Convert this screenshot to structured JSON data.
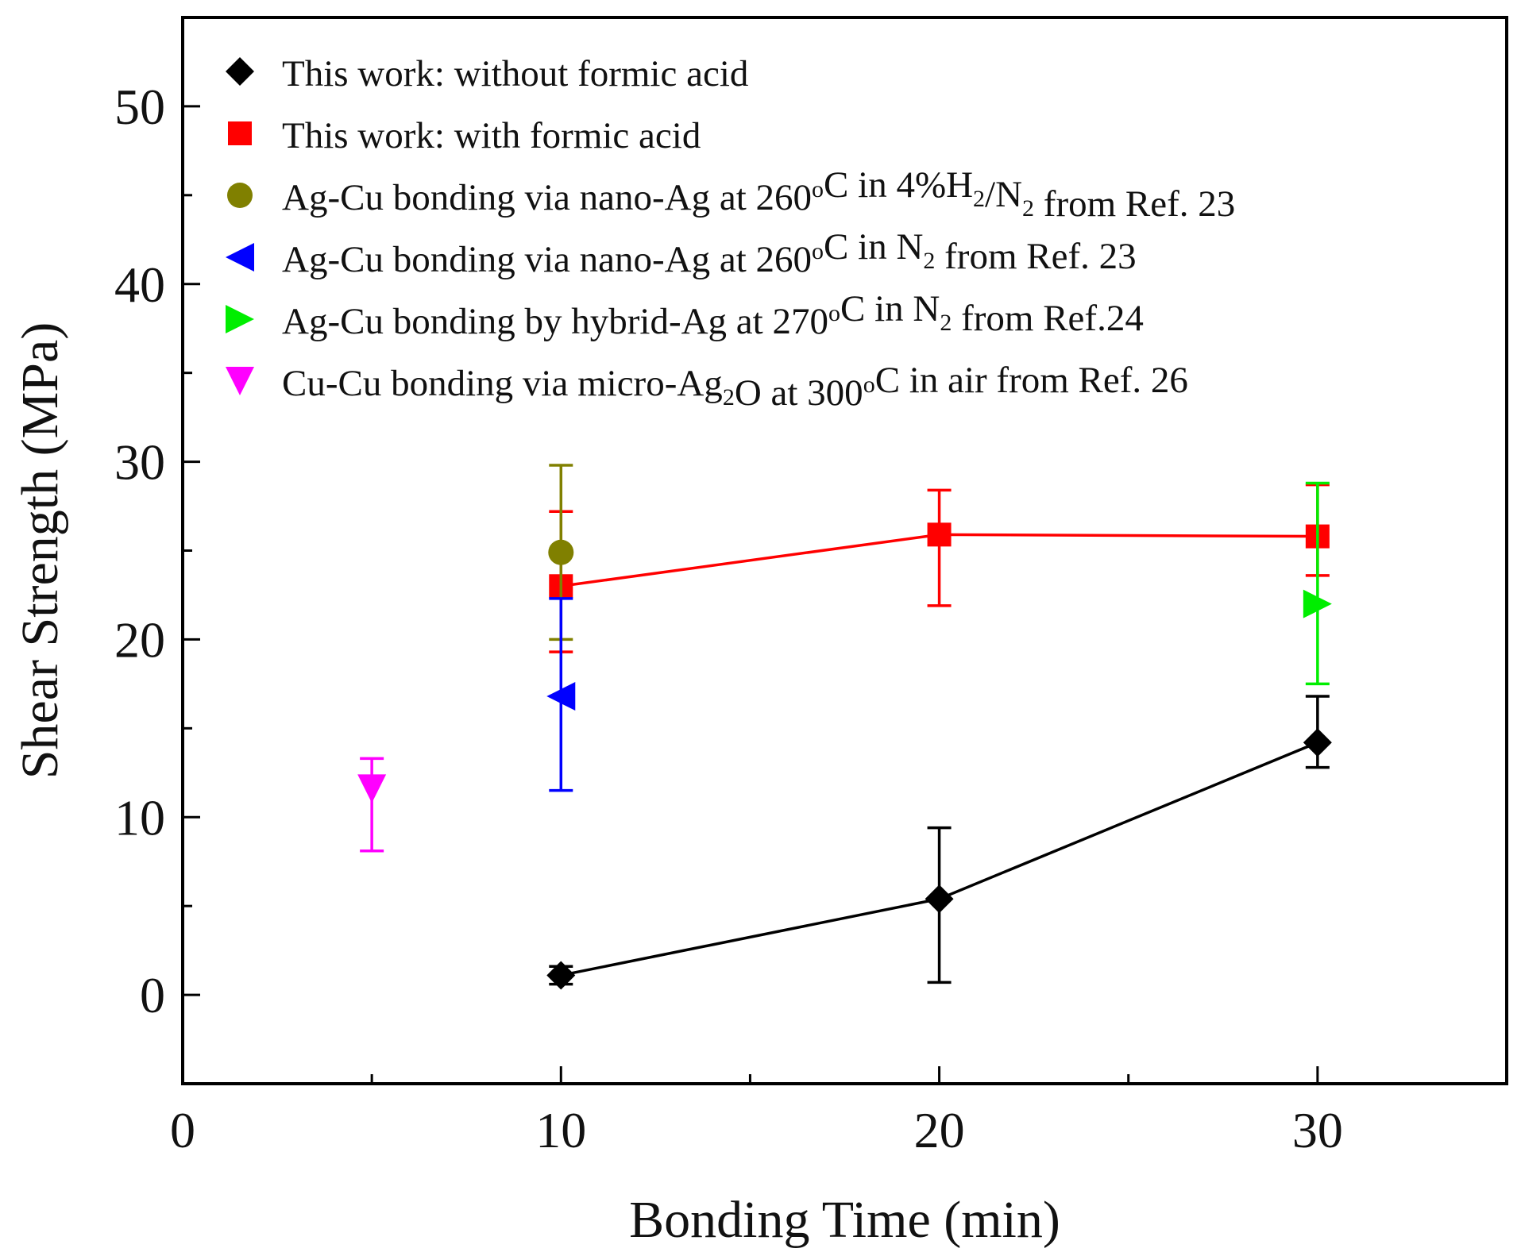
{
  "chart_data": {
    "type": "scatter",
    "title": "",
    "xlabel": "Bonding Time (min)",
    "ylabel": "Shear Strength (MPa)",
    "xlim": [
      0,
      35
    ],
    "ylim": [
      -5,
      55
    ],
    "xticks": [
      0,
      10,
      20,
      30
    ],
    "xtick_labels": [
      "0",
      "10",
      "20",
      "30"
    ],
    "yticks": [
      0,
      10,
      20,
      30,
      40,
      50
    ],
    "ytick_labels": [
      "0",
      "10",
      "20",
      "30",
      "40",
      "50"
    ],
    "x_minor_step": 5,
    "y_minor_step": 5,
    "grid": false,
    "legend_position": "top-left",
    "series": [
      {
        "name": "This work: without formic acid",
        "legend_parts": [
          {
            "t": "This work: without formic acid"
          }
        ],
        "color": "#000000",
        "marker": "diamond",
        "connected": true,
        "points": [
          {
            "x": 10,
            "y": 1.1,
            "err_low": 0.5,
            "err_high": 0.5
          },
          {
            "x": 20,
            "y": 5.4,
            "err_low": 4.7,
            "err_high": 4.0
          },
          {
            "x": 30,
            "y": 14.2,
            "err_low": 1.4,
            "err_high": 2.6
          }
        ]
      },
      {
        "name": "This work: with formic acid",
        "legend_parts": [
          {
            "t": "This work: with formic acid"
          }
        ],
        "color": "#ff0000",
        "marker": "square",
        "connected": true,
        "points": [
          {
            "x": 10,
            "y": 23.0,
            "err_low": 3.7,
            "err_high": 4.2
          },
          {
            "x": 20,
            "y": 25.9,
            "err_low": 4.0,
            "err_high": 2.5
          },
          {
            "x": 30,
            "y": 25.8,
            "err_low": 2.2,
            "err_high": 2.9
          }
        ]
      },
      {
        "name": "Ag-Cu bonding via nano-Ag at 260oC in 4%H2/N2 from Ref. 23",
        "legend_parts": [
          {
            "t": "Ag-Cu bonding via nano-Ag at 260"
          },
          {
            "t": "o",
            "sup": true
          },
          {
            "t": "C in 4%H"
          },
          {
            "t": "2",
            "sub": true
          },
          {
            "t": "/N"
          },
          {
            "t": "2",
            "sub": true
          },
          {
            "t": " from Ref. 23"
          }
        ],
        "color": "#808000",
        "marker": "circle",
        "connected": false,
        "points": [
          {
            "x": 10,
            "y": 24.9,
            "err_low": 4.9,
            "err_high": 4.9
          }
        ]
      },
      {
        "name": "Ag-Cu bonding via nano-Ag at 260oC in N2 from Ref. 23",
        "legend_parts": [
          {
            "t": "Ag-Cu bonding via nano-Ag at 260"
          },
          {
            "t": "o",
            "sup": true
          },
          {
            "t": "C in N"
          },
          {
            "t": "2",
            "sub": true
          },
          {
            "t": " from Ref. 23"
          }
        ],
        "color": "#0000ff",
        "marker": "triangle-left",
        "connected": false,
        "points": [
          {
            "x": 10,
            "y": 16.8,
            "err_low": 5.3,
            "err_high": 5.5
          }
        ]
      },
      {
        "name": "Ag-Cu bonding by hybrid-Ag at 270oC in N2 from Ref.24",
        "legend_parts": [
          {
            "t": "Ag-Cu bonding by hybrid-Ag at 270"
          },
          {
            "t": "o",
            "sup": true
          },
          {
            "t": "C in N"
          },
          {
            "t": "2",
            "sub": true
          },
          {
            "t": " from Ref.24"
          }
        ],
        "color": "#00ee00",
        "marker": "triangle-right",
        "connected": false,
        "points": [
          {
            "x": 30,
            "y": 22.0,
            "err_low": 4.5,
            "err_high": 6.8
          }
        ]
      },
      {
        "name": "Cu-Cu bonding via micro-Ag2O at 300oC in air from Ref. 26",
        "legend_parts": [
          {
            "t": "Cu-Cu bonding via micro-Ag"
          },
          {
            "t": "2",
            "sub": true
          },
          {
            "t": "O at 300"
          },
          {
            "t": "o",
            "sup": true
          },
          {
            "t": "C in air from Ref. 26"
          }
        ],
        "color": "#ff00ff",
        "marker": "triangle-down",
        "connected": false,
        "points": [
          {
            "x": 5,
            "y": 11.6,
            "err_low": 3.5,
            "err_high": 1.7
          }
        ]
      }
    ]
  }
}
